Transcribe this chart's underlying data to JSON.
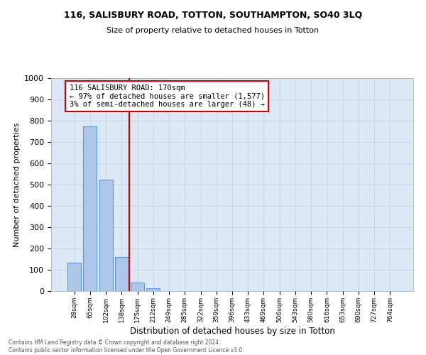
{
  "title": "116, SALISBURY ROAD, TOTTON, SOUTHAMPTON, SO40 3LQ",
  "subtitle": "Size of property relative to detached houses in Totton",
  "xlabel": "Distribution of detached houses by size in Totton",
  "ylabel": "Number of detached properties",
  "footnote": "Contains HM Land Registry data © Crown copyright and database right 2024.\nContains public sector information licensed under the Open Government Licence v3.0.",
  "bar_labels": [
    "28sqm",
    "65sqm",
    "102sqm",
    "138sqm",
    "175sqm",
    "212sqm",
    "249sqm",
    "285sqm",
    "322sqm",
    "359sqm",
    "396sqm",
    "433sqm",
    "469sqm",
    "506sqm",
    "543sqm",
    "580sqm",
    "616sqm",
    "653sqm",
    "690sqm",
    "727sqm",
    "764sqm"
  ],
  "bar_values": [
    133,
    775,
    525,
    160,
    40,
    12,
    0,
    0,
    0,
    0,
    0,
    0,
    0,
    0,
    0,
    0,
    0,
    0,
    0,
    0,
    0
  ],
  "bar_color": "#aec6e8",
  "bar_edge_color": "#5b9bd5",
  "vline_x": 3.5,
  "property_line_label": "116 SALISBURY ROAD: 170sqm",
  "annotation_line1": "← 97% of detached houses are smaller (1,577)",
  "annotation_line2": "3% of semi-detached houses are larger (48) →",
  "annotation_box_color": "#cc0000",
  "vline_color": "#cc0000",
  "grid_color": "#c8d8e8",
  "background_color": "#dce8f5",
  "ylim": [
    0,
    1000
  ],
  "yticks": [
    0,
    100,
    200,
    300,
    400,
    500,
    600,
    700,
    800,
    900,
    1000
  ]
}
